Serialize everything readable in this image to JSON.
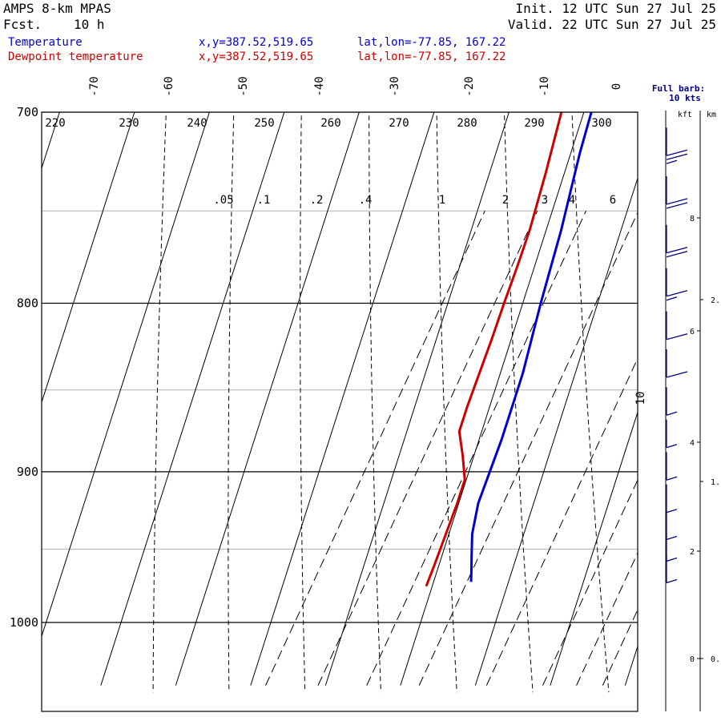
{
  "header": {
    "model": "AMPS 8-km MPAS",
    "fcst_label": "Fcst.",
    "fcst_value": "10 h",
    "init": "Init. 12 UTC Sun 27 Jul 25",
    "valid": "Valid. 22 UTC Sun 27 Jul 25"
  },
  "legend": [
    {
      "name": "Temperature",
      "xy": "x,y=387.52,519.65",
      "latlon": "lat,lon=-77.85, 167.22",
      "color": "#0000cc"
    },
    {
      "name": "Dewpoint temperature",
      "xy": "x,y=387.52,519.65",
      "latlon": "lat,lon=-77.85, 167.22",
      "color": "#cc0000"
    }
  ],
  "wind_panel": {
    "title": "Full barb:",
    "subtitle": "10 kts",
    "unit_kft": "kft",
    "unit_km": "km",
    "kft_ticks": [
      "8",
      "6",
      "4",
      "2",
      "0"
    ],
    "km_ticks": [
      "2.",
      "1.",
      "0."
    ]
  },
  "chart_data": {
    "type": "line",
    "title": "",
    "xlabel": "",
    "ylabel": "",
    "pressure_ticks": [
      700,
      800,
      900,
      1000
    ],
    "pressure_range": [
      700,
      1045
    ],
    "isotherm_labels": [
      "-70",
      "-60",
      "-50",
      "-40",
      "-30",
      "-20",
      "-10",
      "0",
      "10"
    ],
    "dry_adiabat_labels": [
      "220",
      "230",
      "240",
      "250",
      "260",
      "270",
      "280",
      "290",
      "300"
    ],
    "mixing_ratio_labels": [
      ".05",
      ".1",
      ".2",
      ".4",
      "1",
      "2",
      "3",
      "4",
      "6"
    ],
    "series": [
      {
        "name": "Temperature",
        "color": "#0000cc",
        "pressure": [
          700,
          720,
          740,
          760,
          780,
          800,
          820,
          840,
          860,
          880,
          900,
          920,
          940,
          955,
          965,
          972
        ],
        "temperature_c": [
          -29,
          -28.8,
          -28.4,
          -28,
          -27.8,
          -27.6,
          -27.3,
          -27,
          -27,
          -27,
          -27.2,
          -27.4,
          -26.9,
          -26,
          -25.4,
          -25
        ]
      },
      {
        "name": "Dewpoint temperature",
        "color": "#cc0000",
        "pressure": [
          700,
          730,
          760,
          780,
          800,
          820,
          840,
          860,
          875,
          890,
          905,
          920,
          940,
          960,
          975
        ],
        "temperature_c": [
          -33,
          -32.5,
          -32.2,
          -32.3,
          -32.5,
          -32.6,
          -32.8,
          -33,
          -33,
          -31.5,
          -30.2,
          -30.2,
          -30.4,
          -30.6,
          -30.8
        ]
      }
    ],
    "wind_barbs_kt": [
      {
        "height_kft": 9.3,
        "speed_kt": 25
      },
      {
        "height_kft": 8.4,
        "speed_kt": 20
      },
      {
        "height_kft": 7.5,
        "speed_kt": 20
      },
      {
        "height_kft": 6.7,
        "speed_kt": 15
      },
      {
        "height_kft": 5.9,
        "speed_kt": 10
      },
      {
        "height_kft": 5.2,
        "speed_kt": 10
      },
      {
        "height_kft": 4.5,
        "speed_kt": 5
      },
      {
        "height_kft": 3.9,
        "speed_kt": 5
      },
      {
        "height_kft": 3.3,
        "speed_kt": 5
      },
      {
        "height_kft": 2.7,
        "speed_kt": 5
      },
      {
        "height_kft": 2.2,
        "speed_kt": 5
      },
      {
        "height_kft": 1.8,
        "speed_kt": 5
      },
      {
        "height_kft": 1.4,
        "speed_kt": 5
      }
    ]
  }
}
